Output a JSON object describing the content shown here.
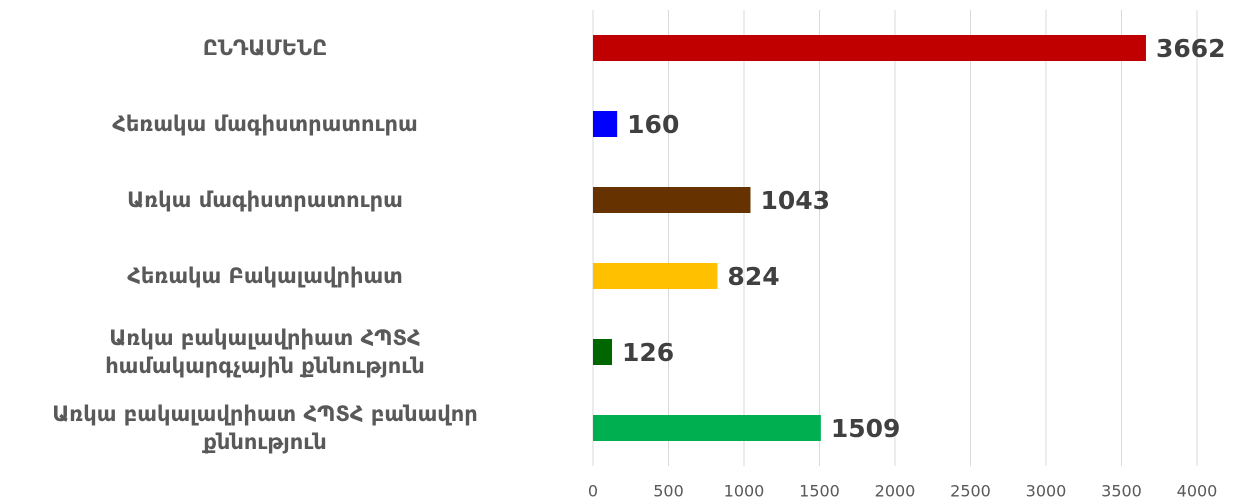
{
  "chart_data": {
    "type": "bar",
    "orientation": "horizontal",
    "categories": [
      "ԸՆԴԱՄԵՆԸ",
      "Հեռակա մագիստրատուրա",
      "Առկա մագիստրատուրա",
      "Հեռակա Բակալավրիատ",
      "Առկա բակալավրիատ ՀՊՏՀ \nհամակարգչային քննություն",
      "Առկա բակալավրիատ ՀՊՏՀ բանավոր\nքննություն"
    ],
    "values": [
      3662,
      160,
      1043,
      824,
      126,
      1509
    ],
    "colors": [
      "#c00000",
      "#0000ff",
      "#663300",
      "#ffc000",
      "#006600",
      "#00b050"
    ],
    "xlim": [
      0,
      4000
    ],
    "xticks": [
      0,
      500,
      1000,
      1500,
      2000,
      2500,
      3000,
      3500,
      4000
    ],
    "grid": true
  }
}
